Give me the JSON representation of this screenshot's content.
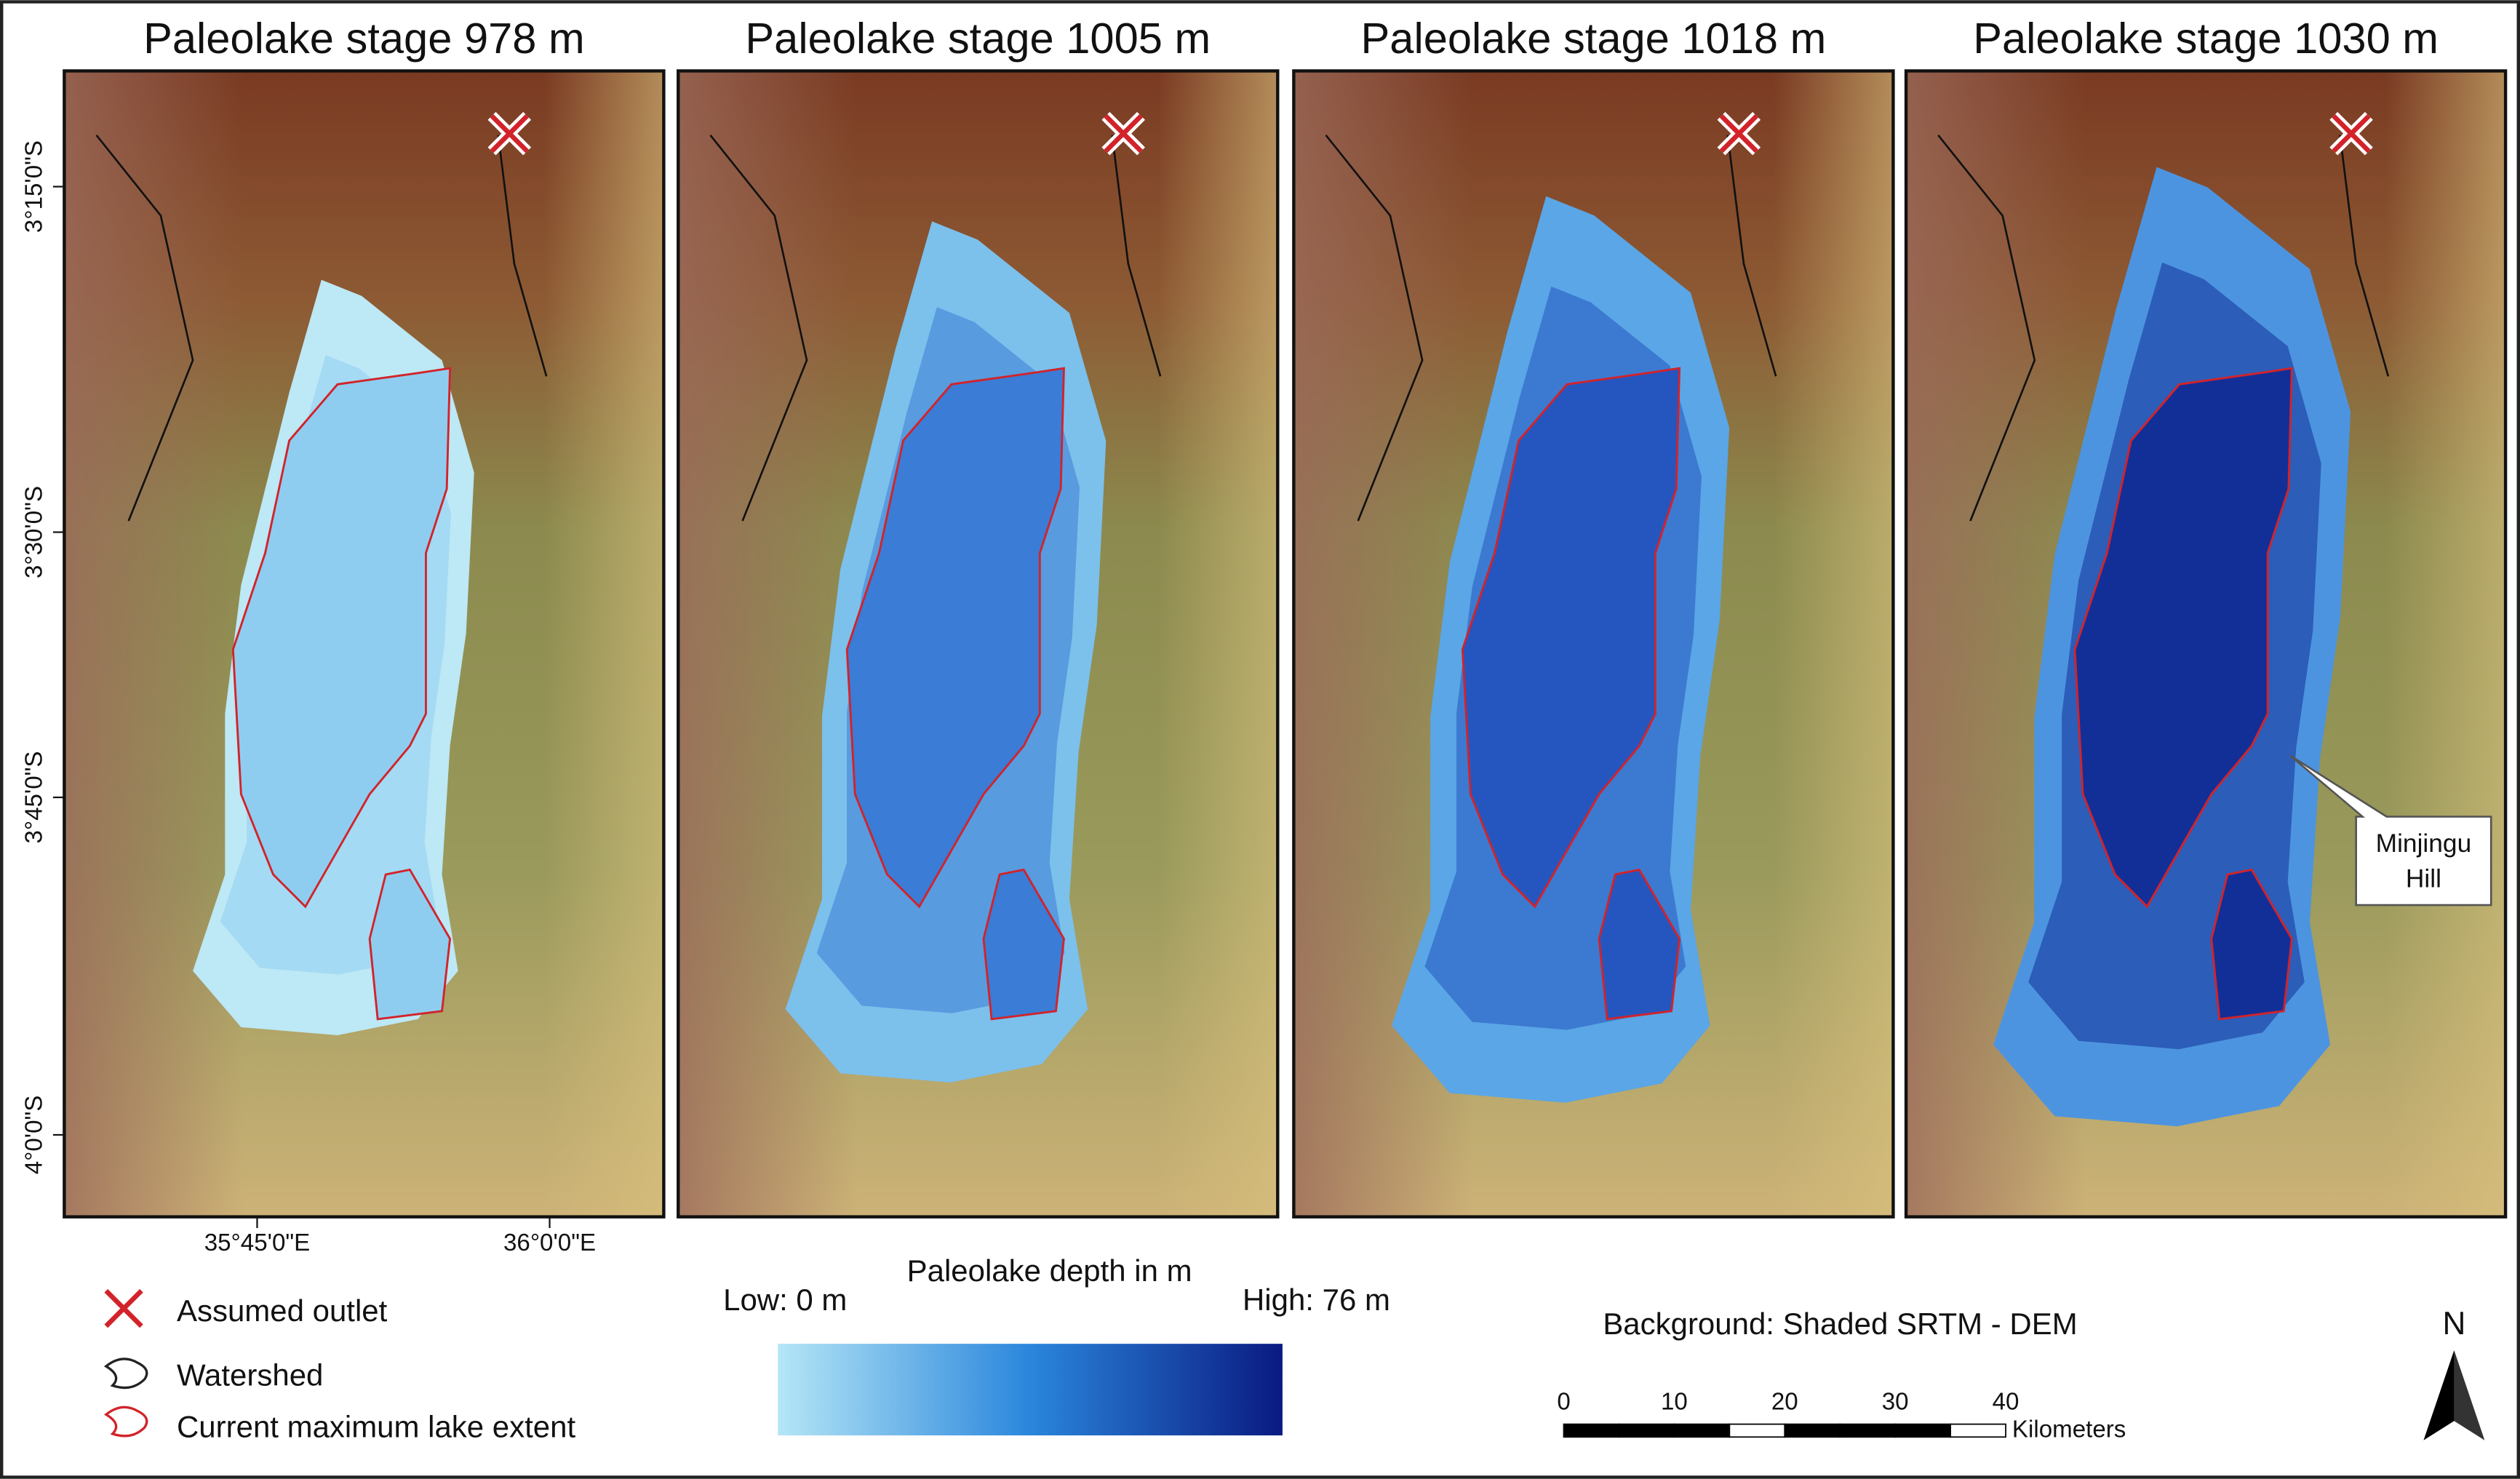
{
  "panels": [
    {
      "title": "Paleolake stage 978 m"
    },
    {
      "title": "Paleolake stage 1005 m"
    },
    {
      "title": "Paleolake stage 1018 m"
    },
    {
      "title": "Paleolake stage 1030 m"
    }
  ],
  "latitude_labels": [
    "3°15'0\"S",
    "3°30'0\"S",
    "3°45'0\"S",
    "4°0'0\"S"
  ],
  "longitude_labels": [
    "35°45'0\"E",
    "36°0'0\"E"
  ],
  "legend": {
    "items": [
      "Assumed outlet",
      "Watershed",
      "Current maximum lake extent"
    ]
  },
  "depth_scale": {
    "title": "Paleolake depth in m",
    "low": "Low: 0 m",
    "high": "High: 76 m"
  },
  "background_note": "Background: Shaded SRTM - DEM",
  "scale_bar": {
    "ticks": [
      0,
      10,
      20,
      30,
      40
    ],
    "unit": "Kilometers"
  },
  "north_label": "N",
  "callout": {
    "lines": [
      "Minjingu",
      "Hill"
    ]
  }
}
